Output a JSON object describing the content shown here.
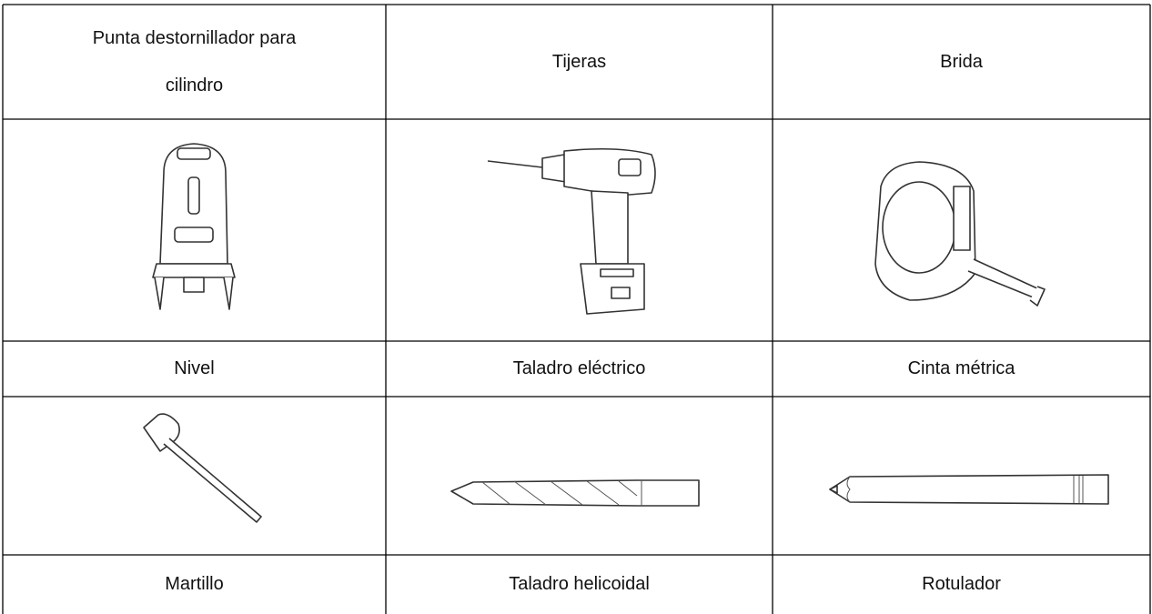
{
  "table": {
    "rows": [
      [
        "Punta destornillador para cilindro",
        "Tijeras",
        "Brida"
      ],
      [
        "Nivel",
        "Taladro eléctrico",
        "Cinta métrica"
      ],
      [
        "Martillo",
        "Taladro helicoidal",
        "Rotulador"
      ]
    ]
  }
}
